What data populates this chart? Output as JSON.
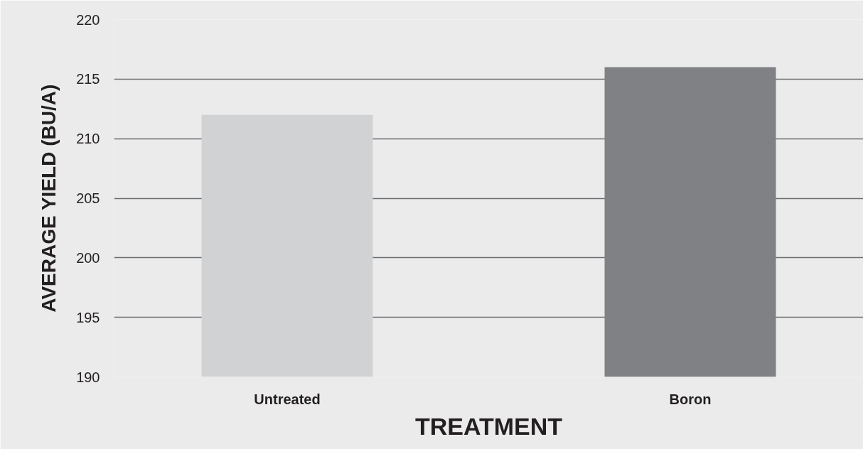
{
  "chart_data": {
    "type": "bar",
    "xlabel": "TREATMENT",
    "ylabel": "AVERAGE YIELD (BU/A)",
    "categories": [
      "Untreated",
      "Boron"
    ],
    "values": [
      212,
      216
    ],
    "colors": [
      "#d1d2d4",
      "#808184"
    ],
    "ylim": [
      190,
      220
    ],
    "yticks": [
      190,
      195,
      200,
      205,
      210,
      215,
      220
    ],
    "grid": "y"
  }
}
